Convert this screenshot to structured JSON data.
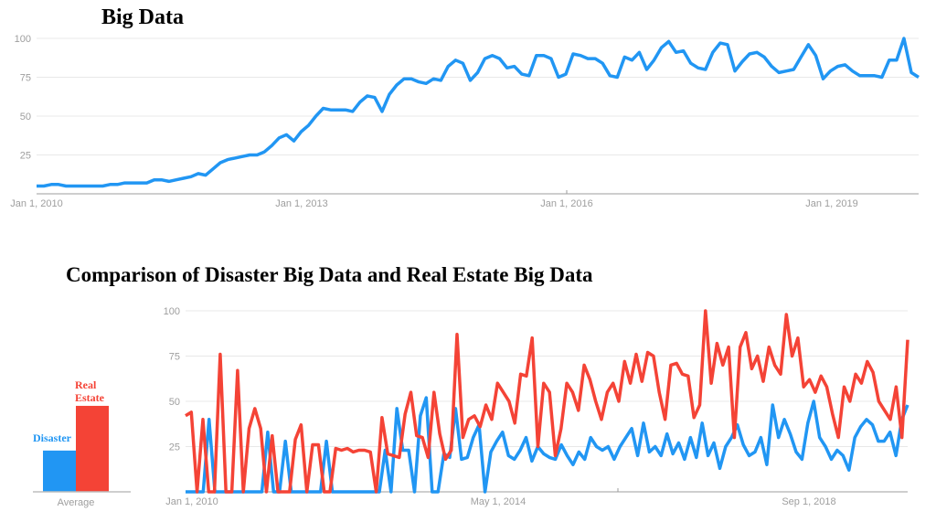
{
  "chart_data": [
    {
      "type": "line",
      "title": "Big Data",
      "x_range": [
        "Jan 1, 2010",
        "mid 2020"
      ],
      "x_tick_labels": [
        "Jan 1, 2010",
        "Jan 1, 2013",
        "Jan 1, 2016",
        "Jan 1, 2019"
      ],
      "y_tick_labels": [
        "100",
        "75",
        "50",
        "25"
      ],
      "ylim": [
        0,
        100
      ],
      "grid": true,
      "series": [
        {
          "name": "Big Data",
          "color": "#2196f3",
          "values": [
            5,
            5,
            6,
            6,
            5,
            5,
            5,
            5,
            5,
            5,
            6,
            6,
            7,
            7,
            7,
            7,
            9,
            9,
            8,
            9,
            10,
            11,
            13,
            12,
            16,
            20,
            22,
            23,
            24,
            25,
            25,
            27,
            31,
            36,
            38,
            34,
            40,
            44,
            50,
            55,
            54,
            54,
            54,
            53,
            59,
            63,
            62,
            53,
            64,
            70,
            74,
            74,
            72,
            71,
            74,
            73,
            82,
            86,
            84,
            73,
            78,
            87,
            89,
            87,
            81,
            82,
            77,
            76,
            89,
            89,
            87,
            75,
            77,
            90,
            89,
            87,
            87,
            84,
            76,
            75,
            88,
            86,
            91,
            80,
            86,
            94,
            98,
            91,
            92,
            84,
            81,
            80,
            91,
            97,
            96,
            79,
            85,
            90,
            91,
            88,
            82,
            78,
            79,
            80,
            88,
            96,
            89,
            74,
            79,
            82,
            83,
            79,
            76,
            76,
            76,
            75,
            86,
            86,
            100,
            78,
            75
          ]
        }
      ]
    },
    {
      "type": "line",
      "title": "Comparison of Disaster Big Data and Real Estate Big Data",
      "x_range": [
        "Jan 1, 2010",
        "mid 2020"
      ],
      "x_tick_labels": [
        "Jan 1, 2010",
        "May 1, 2014",
        "Sep 1, 2018"
      ],
      "y_tick_labels": [
        "100",
        "75",
        "50",
        "25"
      ],
      "ylim": [
        0,
        100
      ],
      "grid": true,
      "series": [
        {
          "name": "Disaster",
          "color": "#2196f3",
          "values": [
            0,
            0,
            0,
            0,
            40,
            0,
            0,
            0,
            0,
            0,
            0,
            0,
            0,
            0,
            33,
            0,
            0,
            28,
            0,
            0,
            0,
            0,
            0,
            0,
            28,
            0,
            0,
            0,
            0,
            0,
            0,
            0,
            0,
            0,
            23,
            0,
            46,
            23,
            23,
            0,
            42,
            52,
            0,
            0,
            21,
            19,
            46,
            18,
            19,
            30,
            37,
            0,
            22,
            28,
            33,
            20,
            18,
            23,
            30,
            17,
            25,
            21,
            19,
            18,
            26,
            20,
            15,
            22,
            18,
            30,
            25,
            23,
            25,
            18,
            25,
            30,
            35,
            20,
            38,
            22,
            25,
            20,
            32,
            21,
            27,
            18,
            30,
            19,
            38,
            20,
            27,
            13,
            25,
            30,
            37,
            26,
            20,
            22,
            30,
            15,
            48,
            30,
            40,
            32,
            22,
            18,
            38,
            50,
            30,
            25,
            18,
            23,
            20,
            12,
            30,
            36,
            40,
            37,
            28,
            28,
            33,
            20,
            40,
            48
          ]
        },
        {
          "name": "Real Estate",
          "color": "#f44336",
          "values": [
            42,
            44,
            0,
            40,
            0,
            0,
            76,
            0,
            0,
            67,
            0,
            35,
            46,
            35,
            0,
            31,
            0,
            0,
            0,
            29,
            37,
            0,
            26,
            26,
            0,
            0,
            24,
            23,
            24,
            22,
            23,
            23,
            22,
            0,
            41,
            21,
            20,
            19,
            43,
            55,
            31,
            30,
            19,
            55,
            32,
            18,
            23,
            87,
            30,
            40,
            42,
            36,
            48,
            40,
            60,
            55,
            50,
            38,
            65,
            64,
            85,
            25,
            60,
            55,
            20,
            35,
            60,
            55,
            45,
            70,
            62,
            50,
            40,
            55,
            60,
            50,
            72,
            60,
            76,
            61,
            77,
            75,
            55,
            40,
            70,
            71,
            65,
            64,
            41,
            48,
            100,
            60,
            82,
            70,
            80,
            30,
            80,
            88,
            68,
            75,
            61,
            80,
            70,
            65,
            98,
            75,
            85,
            58,
            62,
            55,
            64,
            58,
            43,
            30,
            58,
            50,
            65,
            60,
            72,
            66,
            50,
            45,
            40,
            58,
            30,
            84
          ]
        }
      ],
      "inset_bar": {
        "type": "bar",
        "categories": [
          "Disaster",
          "Real Estate"
        ],
        "values": [
          24,
          50
        ],
        "xlabel": "Average"
      }
    }
  ]
}
